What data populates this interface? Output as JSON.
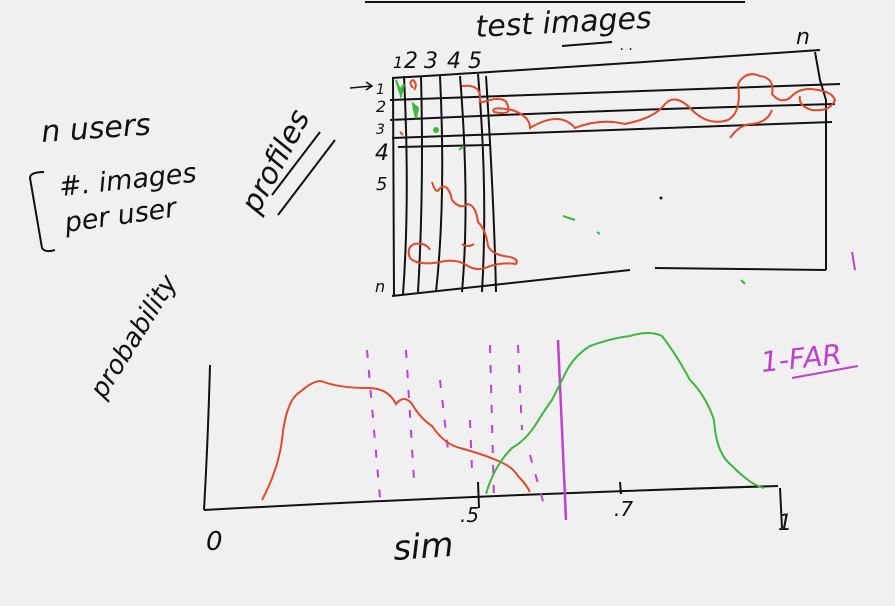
{
  "whiteboard": {
    "title": "test images",
    "n_label_top": "n",
    "column_numbers": [
      "1",
      "2",
      "3",
      "4",
      "5"
    ],
    "row_numbers": [
      "1",
      "2",
      "3",
      "4",
      "5",
      "n"
    ],
    "left_note": {
      "line1": "n users",
      "line2": "#. images",
      "line3": "per user"
    },
    "profiles_label": "profiles",
    "probability_label": "probability",
    "far_label": "1-FAR",
    "x_axis_label": "sim",
    "x_ticks": {
      "zero": "0",
      "half": ".5",
      "seven": ".7",
      "one": "1"
    }
  },
  "colors": {
    "ink": "#111111",
    "red": "#e04a2a",
    "green": "#3cb83c",
    "purple": "#c040d0"
  }
}
